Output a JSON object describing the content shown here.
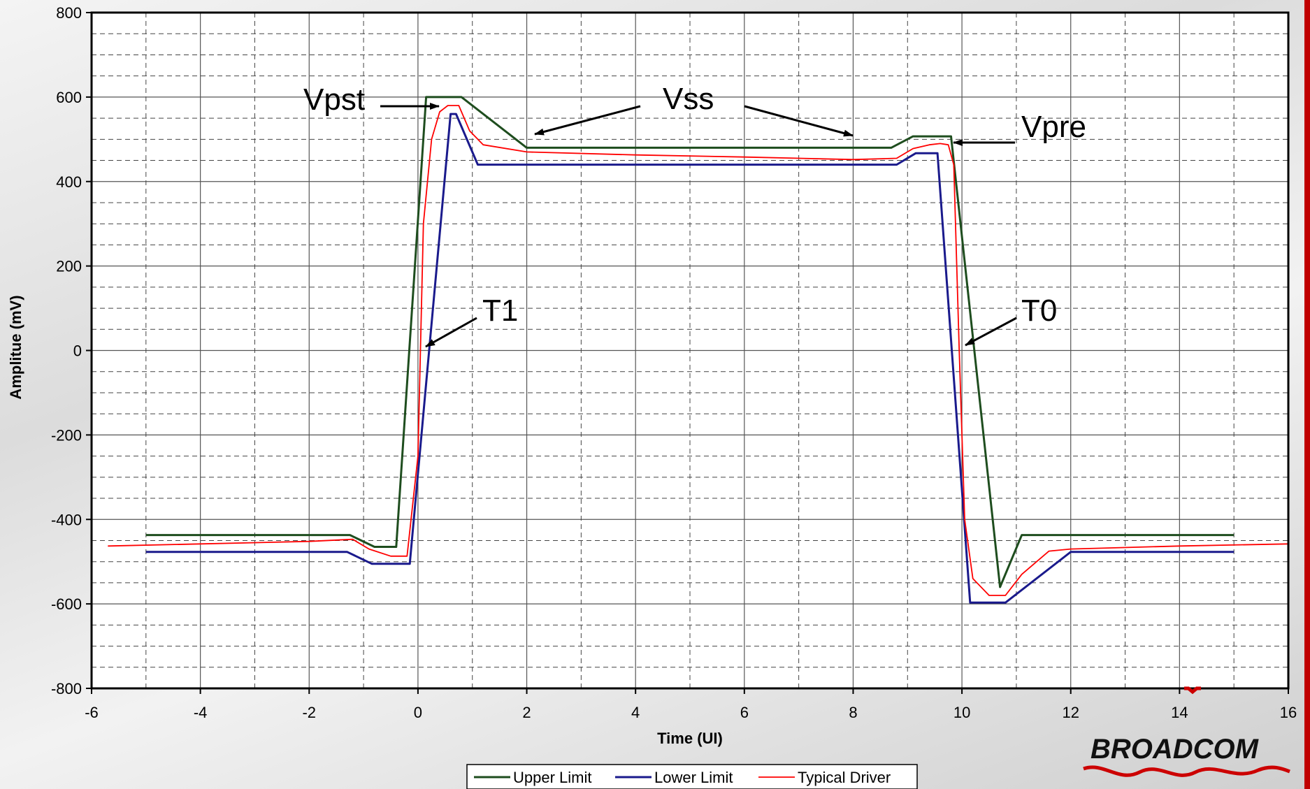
{
  "chart_data": {
    "type": "line",
    "title": "",
    "xlabel": "Time (UI)",
    "ylabel": "Amplitue (mV)",
    "xlim": [
      -6,
      16
    ],
    "ylim": [
      -800,
      800
    ],
    "x_ticks": [
      -6,
      -4,
      -2,
      0,
      2,
      4,
      6,
      8,
      10,
      12,
      14,
      16
    ],
    "y_ticks": [
      -800,
      -600,
      -400,
      -200,
      0,
      200,
      400,
      600,
      800
    ],
    "grid": true,
    "legend_position": "bottom",
    "series": [
      {
        "name": "Upper Limit",
        "color": "#1e4d1e",
        "points": [
          [
            -5,
            -437
          ],
          [
            -1.25,
            -437
          ],
          [
            -0.8,
            -465
          ],
          [
            -0.4,
            -465
          ],
          [
            0.15,
            600
          ],
          [
            0.8,
            600
          ],
          [
            2,
            480
          ],
          [
            8.7,
            480
          ],
          [
            9.1,
            507
          ],
          [
            9.8,
            507
          ],
          [
            10.7,
            -560
          ],
          [
            11.1,
            -437
          ],
          [
            15,
            -437
          ]
        ]
      },
      {
        "name": "Lower Limit",
        "color": "#1a1a8c",
        "points": [
          [
            -5,
            -477
          ],
          [
            -1.3,
            -477
          ],
          [
            -0.85,
            -505
          ],
          [
            -0.15,
            -505
          ],
          [
            0.6,
            560
          ],
          [
            0.7,
            560
          ],
          [
            1.1,
            440
          ],
          [
            8.8,
            440
          ],
          [
            9.15,
            467
          ],
          [
            9.55,
            467
          ],
          [
            10.15,
            -597
          ],
          [
            10.8,
            -597
          ],
          [
            12,
            -477
          ],
          [
            15,
            -477
          ]
        ]
      },
      {
        "name": "Typical Driver",
        "color": "#ff0000",
        "points": [
          [
            -5.7,
            -463
          ],
          [
            -4,
            -458
          ],
          [
            -2,
            -452
          ],
          [
            -1.2,
            -447
          ],
          [
            -0.9,
            -470
          ],
          [
            -0.5,
            -487
          ],
          [
            -0.2,
            -487
          ],
          [
            0,
            -250
          ],
          [
            0.1,
            300
          ],
          [
            0.25,
            500
          ],
          [
            0.4,
            565
          ],
          [
            0.55,
            580
          ],
          [
            0.75,
            580
          ],
          [
            0.95,
            520
          ],
          [
            1.2,
            487
          ],
          [
            2,
            470
          ],
          [
            4,
            463
          ],
          [
            6,
            458
          ],
          [
            8,
            452
          ],
          [
            8.8,
            455
          ],
          [
            9.1,
            478
          ],
          [
            9.4,
            487
          ],
          [
            9.6,
            490
          ],
          [
            9.75,
            487
          ],
          [
            9.85,
            440
          ],
          [
            9.95,
            0
          ],
          [
            10.05,
            -400
          ],
          [
            10.2,
            -540
          ],
          [
            10.5,
            -580
          ],
          [
            10.8,
            -580
          ],
          [
            11.1,
            -530
          ],
          [
            11.6,
            -475
          ],
          [
            12,
            -470
          ],
          [
            14,
            -463
          ],
          [
            16,
            -458
          ]
        ]
      }
    ],
    "annotations": [
      {
        "text": "Vpst"
      },
      {
        "text": "Vss"
      },
      {
        "text": "Vpre"
      },
      {
        "text": "T1"
      },
      {
        "text": "T0"
      }
    ]
  },
  "logo": {
    "text": "BROADCOM",
    "color": "#cc0000"
  }
}
